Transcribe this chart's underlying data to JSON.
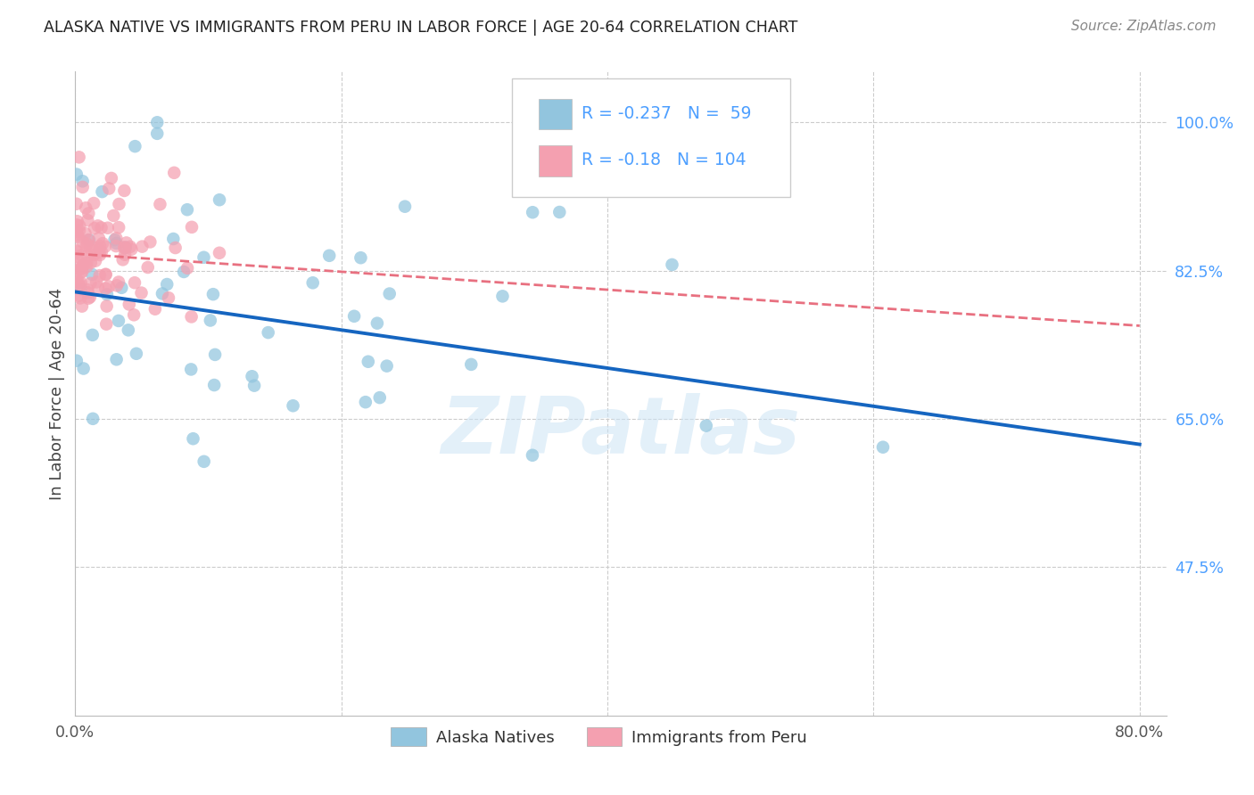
{
  "title": "ALASKA NATIVE VS IMMIGRANTS FROM PERU IN LABOR FORCE | AGE 20-64 CORRELATION CHART",
  "source": "Source: ZipAtlas.com",
  "ylabel": "In Labor Force | Age 20-64",
  "ytick_vals": [
    0.475,
    0.65,
    0.825,
    1.0
  ],
  "ytick_labels": [
    "47.5%",
    "65.0%",
    "82.5%",
    "100.0%"
  ],
  "xtick_vals": [
    0.0,
    0.2,
    0.4,
    0.6,
    0.8
  ],
  "xtick_labels": [
    "0.0%",
    "",
    "",
    "",
    "80.0%"
  ],
  "xlim": [
    0.0,
    0.82
  ],
  "ylim": [
    0.3,
    1.06
  ],
  "r1": -0.237,
  "n1": 59,
  "r2": -0.18,
  "n2": 104,
  "scatter1_color": "#92c5de",
  "scatter2_color": "#f4a0b0",
  "line1_color": "#1565c0",
  "line2_color": "#e87080",
  "legend_label1": "Alaska Natives",
  "legend_label2": "Immigrants from Peru",
  "watermark": "ZIPatlas",
  "grid_color": "#cccccc",
  "title_color": "#222222",
  "source_color": "#888888",
  "ytick_color": "#4d9fff",
  "xtick_color": "#555555",
  "line1_y0": 0.8,
  "line1_y1": 0.62,
  "line2_y0": 0.845,
  "line2_y1": 0.76
}
